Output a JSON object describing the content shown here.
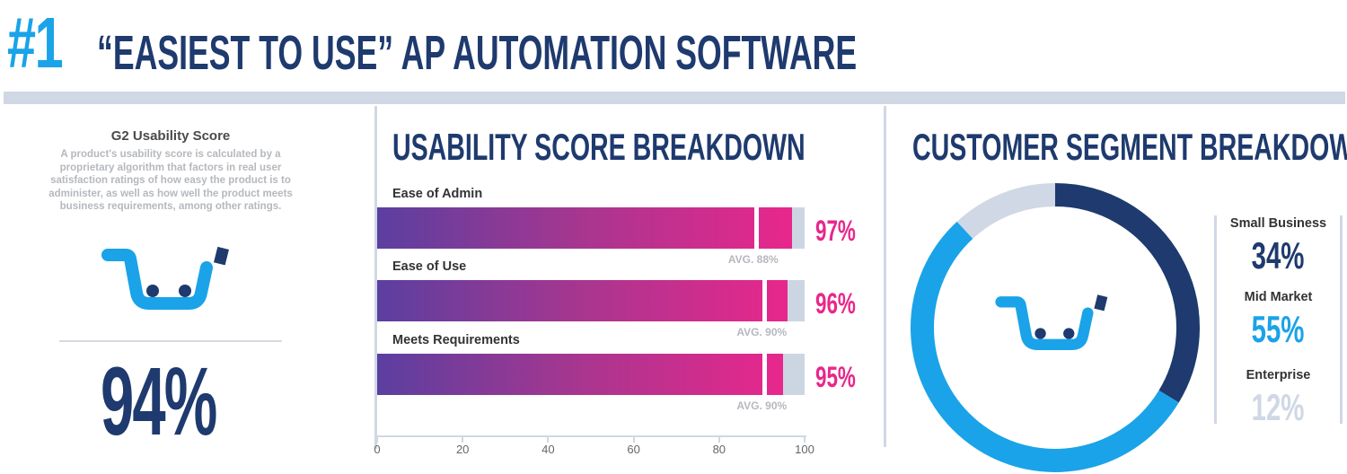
{
  "header": {
    "rank": "#1",
    "title": "“EASIEST TO USE” AP AUTOMATION SOFTWARE"
  },
  "usability": {
    "title": "G2 Usability Score",
    "description": "A product's usability score is calculated by a proprietary algorithm that factors in real user satisfaction ratings of how easy the product is to administer, as well as how well the product meets business requirements, among other ratings.",
    "score": "94%"
  },
  "colors": {
    "navy": "#1e3a6e",
    "blue": "#1aa3e8",
    "light": "#cfd8e4",
    "pink": "#e8278c",
    "purple": "#5b3fa0"
  },
  "chart_data": [
    {
      "type": "bar",
      "title": "USABILITY SCORE BREAKDOWN",
      "orientation": "horizontal",
      "categories": [
        "Ease of Admin",
        "Ease of Use",
        "Meets Requirements"
      ],
      "series": [
        {
          "name": "Score",
          "values": [
            97,
            96,
            95
          ],
          "labels": [
            "97%",
            "96%",
            "95%"
          ]
        },
        {
          "name": "Average",
          "values": [
            88,
            90,
            90
          ],
          "labels": [
            "AVG. 88%",
            "AVG. 90%",
            "AVG. 90%"
          ]
        }
      ],
      "xlim": [
        0,
        100
      ],
      "xticks": [
        0,
        20,
        40,
        60,
        80,
        100
      ],
      "xtick_labels": [
        "0",
        "20",
        "40",
        "60",
        "80",
        "100"
      ]
    },
    {
      "type": "pie",
      "title": "CUSTOMER SEGMENT BREAKDOWN",
      "categories": [
        "Small Business",
        "Mid Market",
        "Enterprise"
      ],
      "values": [
        34,
        55,
        12
      ],
      "labels": [
        "34%",
        "55%",
        "12%"
      ],
      "colors": [
        "#1e3a6e",
        "#1aa3e8",
        "#cfd8e4"
      ]
    }
  ]
}
